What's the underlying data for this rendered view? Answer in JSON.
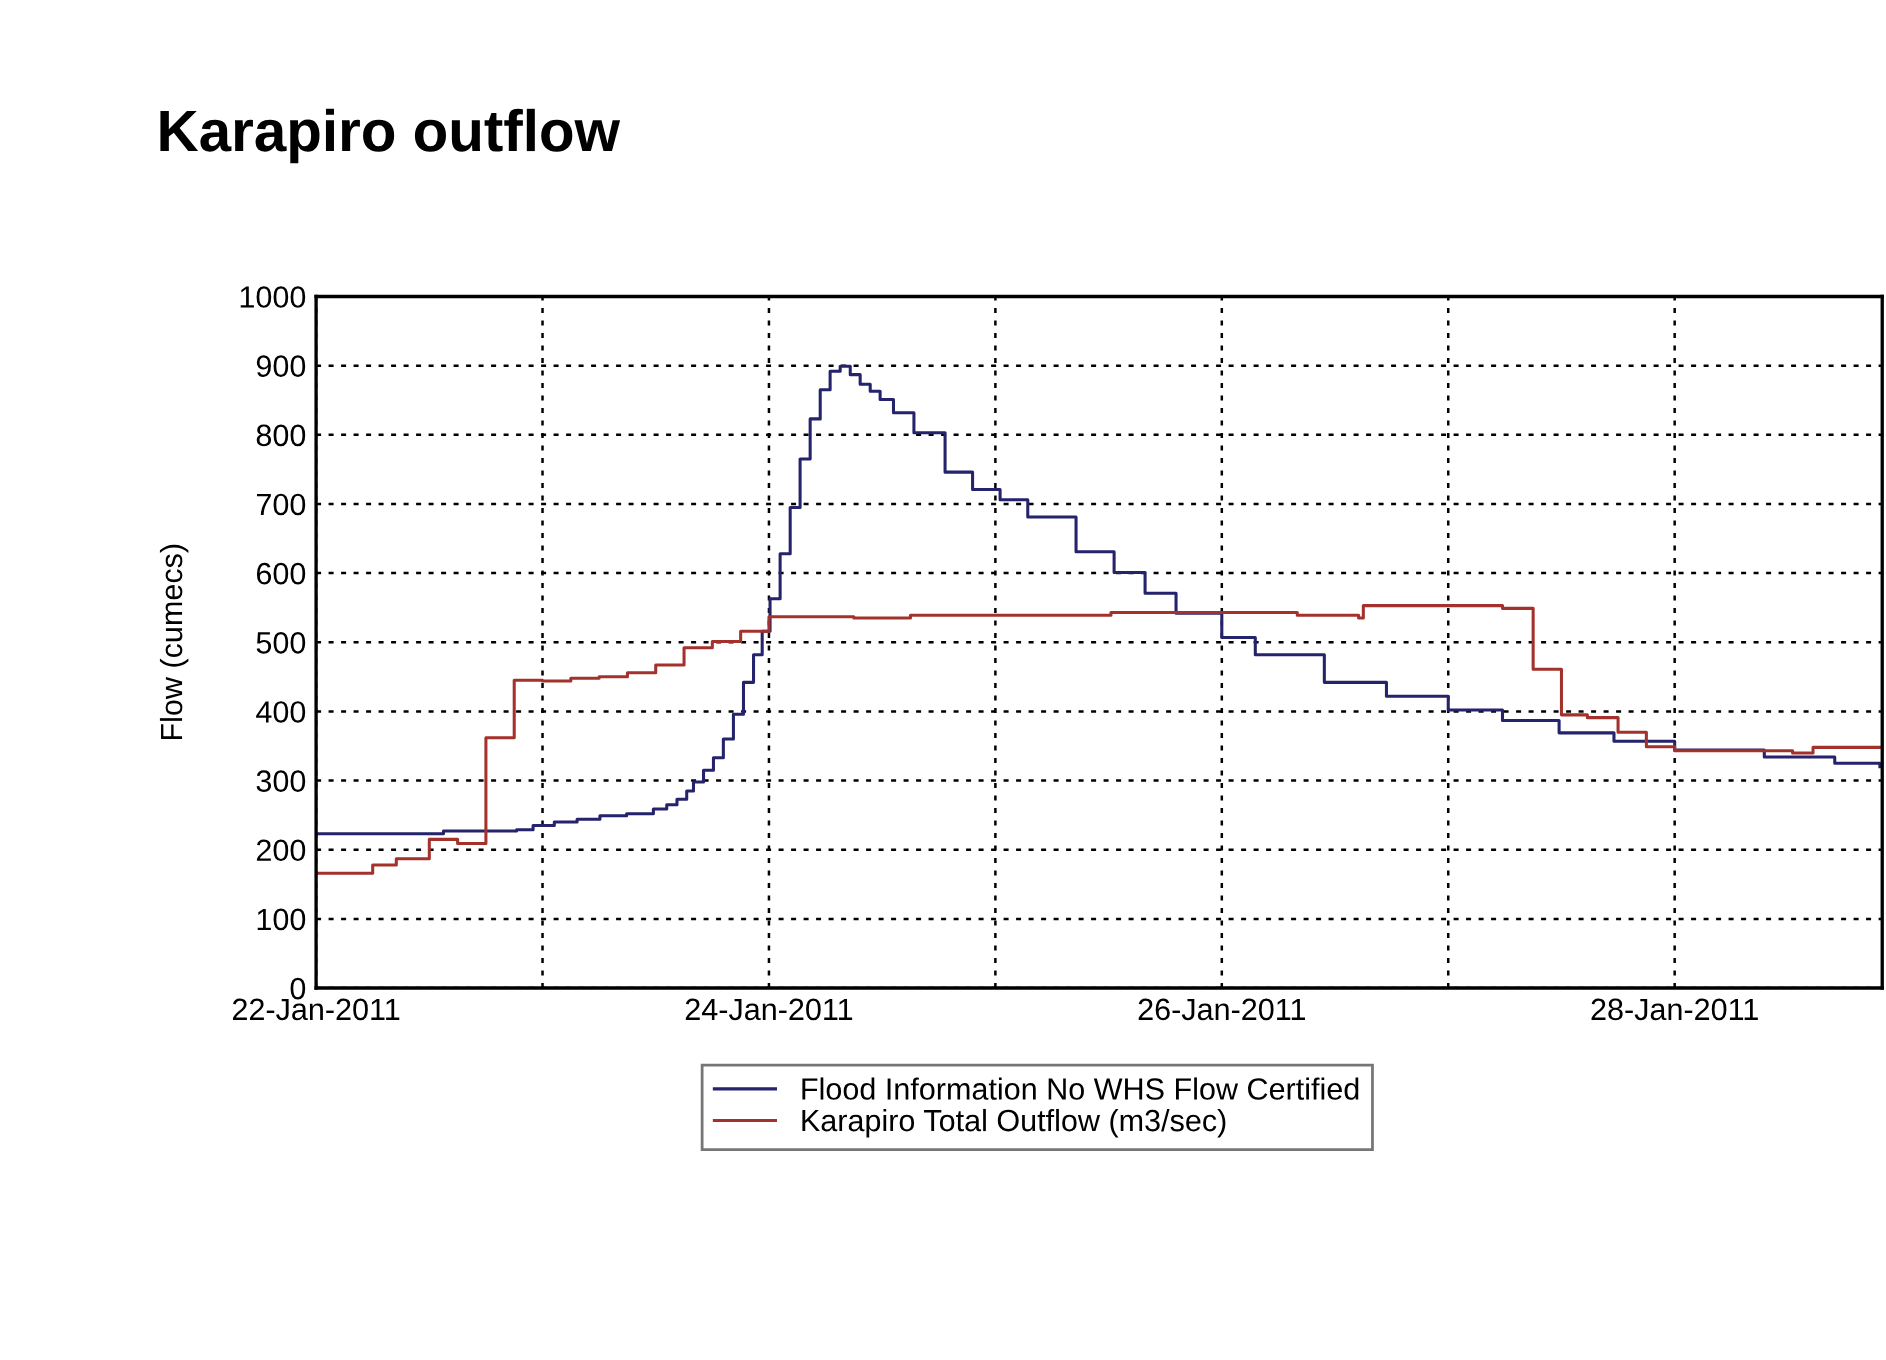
{
  "chart_data": {
    "type": "step",
    "title": "Karapiro outflow",
    "ylabel": "Flow (cumecs)",
    "xlim": [
      "2011-01-22T00:00",
      "2011-01-28T22:00"
    ],
    "xticks": [
      {
        "value": "2011-01-22",
        "label": "22-Jan-2011"
      },
      {
        "value": "2011-01-23",
        "label": null
      },
      {
        "value": "2011-01-24",
        "label": "24-Jan-2011"
      },
      {
        "value": "2011-01-25",
        "label": null
      },
      {
        "value": "2011-01-26",
        "label": "26-Jan-2011"
      },
      {
        "value": "2011-01-27",
        "label": null
      },
      {
        "value": "2011-01-28",
        "label": "28-Jan-2011"
      }
    ],
    "ylim": [
      0,
      1000
    ],
    "yticks": [
      0,
      100,
      200,
      300,
      400,
      500,
      600,
      700,
      800,
      900,
      1000
    ],
    "grid": true,
    "legend": "bottom",
    "line_style": "solid",
    "marker": "none",
    "series": [
      {
        "name": "Flood Information No WHS Flow Certified",
        "color": "#25236b",
        "x": [
          "2011-01-22T00:00",
          "2011-01-22T13:30",
          "2011-01-22T21:15",
          "2011-01-22T23:00",
          "2011-01-23T01:15",
          "2011-01-23T03:40",
          "2011-01-23T06:05",
          "2011-01-23T08:55",
          "2011-01-23T11:45",
          "2011-01-23T13:10",
          "2011-01-23T14:15",
          "2011-01-23T15:17",
          "2011-01-23T16:00",
          "2011-01-23T17:04",
          "2011-01-23T18:07",
          "2011-01-23T19:10",
          "2011-01-23T20:14",
          "2011-01-23T21:18",
          "2011-01-23T22:22",
          "2011-01-23T23:17",
          "2011-01-24T00:07",
          "2011-01-24T01:11",
          "2011-01-24T02:15",
          "2011-01-24T03:18",
          "2011-01-24T04:22",
          "2011-01-24T05:26",
          "2011-01-24T06:29",
          "2011-01-24T07:33",
          "2011-01-24T08:37",
          "2011-01-24T09:40",
          "2011-01-24T10:44",
          "2011-01-24T11:47",
          "2011-01-24T13:12",
          "2011-01-24T15:22",
          "2011-01-24T18:40",
          "2011-01-24T21:35",
          "2011-01-25T00:30",
          "2011-01-25T03:26",
          "2011-01-25T08:33",
          "2011-01-25T12:35",
          "2011-01-25T15:52",
          "2011-01-25T19:09",
          "2011-01-26T00:00",
          "2011-01-26T03:33",
          "2011-01-26T10:52",
          "2011-01-26T17:27",
          "2011-01-27T00:00",
          "2011-01-27T05:45",
          "2011-01-27T11:45",
          "2011-01-27T17:34",
          "2011-01-28T00:00",
          "2011-01-28T09:30",
          "2011-01-28T16:58",
          "2011-01-28T21:45"
        ],
        "values": [
          223,
          227,
          229,
          235,
          240,
          244,
          249,
          252,
          259,
          265,
          273,
          285,
          298,
          315,
          333,
          360,
          396,
          442,
          482,
          516,
          563,
          628,
          695,
          765,
          823,
          865,
          892,
          899,
          887,
          873,
          863,
          851,
          832,
          803,
          746,
          721,
          706,
          681,
          631,
          601,
          571,
          542,
          507,
          482,
          442,
          422,
          402,
          387,
          369,
          357,
          344,
          334,
          325,
          320
        ]
      },
      {
        "name": "Karapiro Total Outflow (m3/sec)",
        "color": "#a3322c",
        "x": [
          "2011-01-22T00:00",
          "2011-01-22T06:00",
          "2011-01-22T08:30",
          "2011-01-22T12:00",
          "2011-01-22T15:00",
          "2011-01-22T18:00",
          "2011-01-22T21:00",
          "2011-01-23T00:00",
          "2011-01-23T03:00",
          "2011-01-23T06:00",
          "2011-01-23T09:00",
          "2011-01-23T12:00",
          "2011-01-23T15:00",
          "2011-01-23T18:00",
          "2011-01-23T21:00",
          "2011-01-24T00:00",
          "2011-01-24T09:00",
          "2011-01-24T15:00",
          "2011-01-25T12:15",
          "2011-01-26T08:00",
          "2011-01-26T14:30",
          "2011-01-26T15:00",
          "2011-01-27T05:45",
          "2011-01-27T09:00",
          "2011-01-27T12:00",
          "2011-01-27T14:45",
          "2011-01-27T18:00",
          "2011-01-27T21:00",
          "2011-01-28T00:00",
          "2011-01-28T12:30",
          "2011-01-28T14:40",
          "2011-01-28T21:45"
        ],
        "values": [
          166,
          178,
          187,
          215,
          209,
          362,
          445,
          444,
          448,
          450,
          456,
          467,
          492,
          501,
          516,
          537,
          535,
          539,
          543,
          539,
          535,
          553,
          549,
          461,
          395,
          391,
          370,
          349,
          343,
          340,
          348,
          348
        ]
      }
    ]
  }
}
